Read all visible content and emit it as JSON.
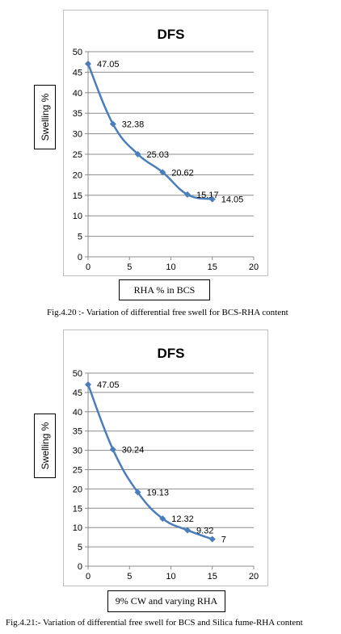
{
  "chart_data": [
    {
      "type": "line",
      "title": "DFS",
      "ylabel": "Swelling %",
      "xlabel": "RHA % in BCS",
      "xlim": [
        0,
        20
      ],
      "ylim": [
        0,
        50
      ],
      "xticks": [
        0,
        5,
        10,
        15,
        20
      ],
      "yticks": [
        0,
        5,
        10,
        15,
        20,
        25,
        30,
        35,
        40,
        45,
        50
      ],
      "grid": true,
      "legend": "none",
      "marker": "diamond",
      "color": "#4a7ebb",
      "series": [
        {
          "x": [
            0,
            3,
            6,
            9,
            12,
            15
          ],
          "y": [
            47.05,
            32.38,
            25.03,
            20.62,
            15.17,
            14.05
          ],
          "labels": [
            "47.05",
            "32.38",
            "25.03",
            "20.62",
            "15.17",
            "14.05"
          ]
        }
      ],
      "caption": "Fig.4.20 :- Variation of differential free swell for BCS-RHA content"
    },
    {
      "type": "line",
      "title": "DFS",
      "ylabel": "Swelling %",
      "xlabel": "9% CW and varying RHA",
      "xlim": [
        0,
        20
      ],
      "ylim": [
        0,
        50
      ],
      "xticks": [
        0,
        5,
        10,
        15,
        20
      ],
      "yticks": [
        0,
        5,
        10,
        15,
        20,
        25,
        30,
        35,
        40,
        45,
        50
      ],
      "grid": true,
      "legend": "none",
      "marker": "diamond",
      "color": "#4a7ebb",
      "series": [
        {
          "x": [
            0,
            3,
            6,
            9,
            12,
            15
          ],
          "y": [
            47.05,
            30.24,
            19.13,
            12.32,
            9.32,
            7
          ],
          "labels": [
            "47.05",
            "30.24",
            "19.13",
            "12.32",
            "9.32",
            "7"
          ]
        }
      ],
      "caption": "Fig.4.21:- Variation of differential free swell for BCS and Silica fume-RHA content"
    }
  ]
}
